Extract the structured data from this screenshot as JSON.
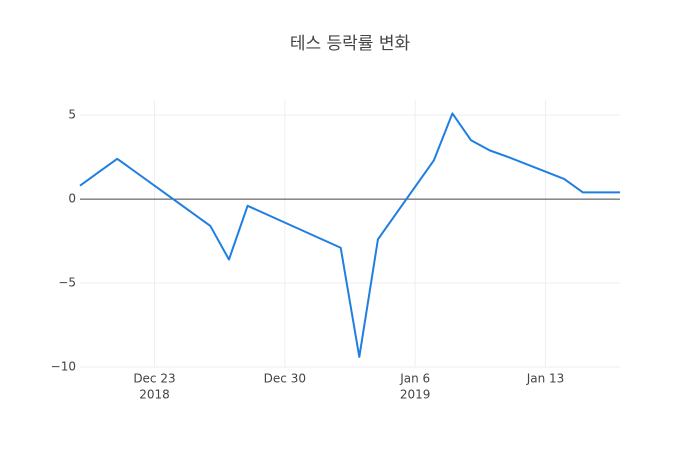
{
  "chart_data": {
    "type": "line",
    "title": "테스 등락률 변화",
    "x": [
      "2018-12-19",
      "2018-12-20",
      "2018-12-21",
      "2018-12-24",
      "2018-12-26",
      "2018-12-27",
      "2018-12-28",
      "2019-01-02",
      "2019-01-03",
      "2019-01-04",
      "2019-01-07",
      "2019-01-08",
      "2019-01-09",
      "2019-01-10",
      "2019-01-11",
      "2019-01-14",
      "2019-01-15",
      "2019-01-16",
      "2019-01-17"
    ],
    "series": [
      {
        "name": "등락률",
        "color": "#1f7fe0",
        "values": [
          0.8,
          1.6,
          2.4,
          0.0,
          -1.6,
          -3.6,
          -0.4,
          -2.9,
          -9.4,
          -2.4,
          2.3,
          5.1,
          3.5,
          2.9,
          2.5,
          1.2,
          0.4,
          0.4,
          0.4
        ]
      }
    ],
    "xlim": [
      "2018-12-19",
      "2019-01-17"
    ],
    "xticks": [
      {
        "value": "2018-12-23",
        "label": "Dec 23",
        "sublabel": "2018"
      },
      {
        "value": "2018-12-30",
        "label": "Dec 30"
      },
      {
        "value": "2019-01-06",
        "label": "Jan 6",
        "sublabel": "2019"
      },
      {
        "value": "2019-01-13",
        "label": "Jan 13"
      }
    ],
    "ylim": [
      -10,
      5.9
    ],
    "yticks": [
      5,
      0,
      {
        "value": -5,
        "label": "−5"
      },
      {
        "value": -10,
        "label": "−10"
      }
    ],
    "grid": true
  }
}
